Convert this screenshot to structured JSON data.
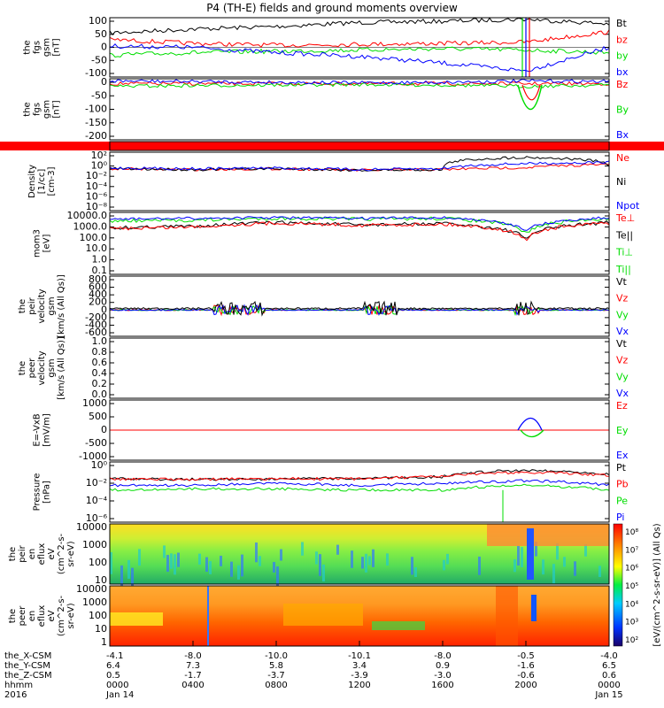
{
  "title": "P4 (TH-E) fields and ground moments overview",
  "colors": {
    "black": "#000000",
    "red": "#ff0000",
    "green": "#00dd00",
    "blue": "#0000ff",
    "flag": "#ff0000"
  },
  "panels": [
    {
      "id": "fgs",
      "ylabel": [
        "the",
        "fgs",
        "gsm",
        "[nT]"
      ],
      "yticks": [
        "100",
        "50",
        "0",
        "-50",
        "-100"
      ],
      "legend": [
        {
          "label": "Bt",
          "color": "black"
        },
        {
          "label": "bz",
          "color": "red"
        },
        {
          "label": "by",
          "color": "green"
        },
        {
          "label": "bx",
          "color": "blue"
        }
      ]
    },
    {
      "id": "fgs_hires",
      "ylabel": [
        "the",
        "fgs",
        "gsm",
        "[nT]"
      ],
      "yticks": [
        "0",
        "-50",
        "-100",
        "-150",
        "-200"
      ],
      "legend": [
        {
          "label": "Bz",
          "color": "red"
        },
        {
          "label": "By",
          "color": "green"
        },
        {
          "label": "Bx",
          "color": "blue"
        }
      ]
    },
    {
      "id": "flag",
      "ylabel": [],
      "yticks": [],
      "legend": []
    },
    {
      "id": "density",
      "ylabel": [
        "Density",
        "[1/cc]",
        "[cm-3]"
      ],
      "yticks": [
        "10²",
        "10⁰",
        "10⁻²",
        "10⁻⁴",
        "10⁻⁶",
        "10⁻⁸"
      ],
      "legend": [
        {
          "label": "Ne",
          "color": "red"
        },
        {
          "label": "Ni",
          "color": "black"
        },
        {
          "label": "Npot",
          "color": "blue"
        }
      ]
    },
    {
      "id": "temperature",
      "ylabel": [
        "mom3",
        "[eV]"
      ],
      "yticks": [
        "10000.0",
        "1000.0",
        "100.0",
        "10.0",
        "1.0",
        "0.1"
      ],
      "legend": [
        {
          "label": "Te⊥",
          "color": "red"
        },
        {
          "label": "Te||",
          "color": "black"
        },
        {
          "label": "Ti⊥",
          "color": "green"
        },
        {
          "label": "Ti||",
          "color": "green"
        }
      ]
    },
    {
      "id": "peir_velocity",
      "ylabel": [
        "the",
        "peir",
        "velocity",
        "gsm",
        "[km/s (All Qs)]"
      ],
      "yticks": [
        "800",
        "600",
        "400",
        "200",
        "0",
        "-200",
        "-400",
        "-600"
      ],
      "legend": [
        {
          "label": "Vt",
          "color": "black"
        },
        {
          "label": "Vz",
          "color": "red"
        },
        {
          "label": "Vy",
          "color": "green"
        },
        {
          "label": "Vx",
          "color": "blue"
        }
      ]
    },
    {
      "id": "peer_velocity",
      "ylabel": [
        "the",
        "peer",
        "velocity",
        "gsm",
        "[km/s (All Qs)]"
      ],
      "yticks": [
        "1.0",
        "0.8",
        "0.6",
        "0.4",
        "0.2",
        "0.0"
      ],
      "legend": [
        {
          "label": "Vt",
          "color": "black"
        },
        {
          "label": "Vz",
          "color": "red"
        },
        {
          "label": "Vy",
          "color": "green"
        },
        {
          "label": "Vx",
          "color": "blue"
        }
      ]
    },
    {
      "id": "efield",
      "ylabel": [
        "E=-VxB",
        "[mV/m]"
      ],
      "yticks": [
        "1000",
        "500",
        "0",
        "-500",
        "-1000"
      ],
      "legend": [
        {
          "label": "Ez",
          "color": "red"
        },
        {
          "label": "Ey",
          "color": "green"
        },
        {
          "label": "Ex",
          "color": "blue"
        }
      ]
    },
    {
      "id": "pressure",
      "ylabel": [
        "Pressure",
        "[nPa]"
      ],
      "yticks": [
        "10⁰",
        "10⁻²",
        "10⁻⁴",
        "10⁻⁶"
      ],
      "legend": [
        {
          "label": "Pt",
          "color": "black"
        },
        {
          "label": "Pb",
          "color": "red"
        },
        {
          "label": "Pe",
          "color": "green"
        },
        {
          "label": "Pi",
          "color": "blue"
        }
      ]
    },
    {
      "id": "peir_eflux",
      "ylabel": [
        "the",
        "peir",
        "en",
        "eflux",
        "eV",
        "(cm^2-s-",
        "sr-eV)"
      ],
      "yticks": [
        "10000",
        "1000",
        "100",
        "10"
      ],
      "legend": []
    },
    {
      "id": "peer_eflux",
      "ylabel": [
        "the",
        "peer",
        "en",
        "eflux",
        "eV",
        "(cm^2-s-",
        "sr-eV)"
      ],
      "yticks": [
        "10000",
        "1000",
        "100",
        "10",
        "1"
      ],
      "legend": []
    }
  ],
  "colorbar": {
    "ticks": [
      "10⁸",
      "10⁷",
      "10⁶",
      "10⁵",
      "10⁴",
      "10³",
      "10²"
    ],
    "label": "[eV/(cm^2-s-sr-eV)] (All Qs)"
  },
  "xaxis": {
    "row_labels": [
      "the_X-CSM",
      "the_Y-CSM",
      "the_Z-CSM",
      "hhmm",
      "2016"
    ],
    "columns": [
      [
        "-4.1",
        "6.4",
        "0.5",
        "0000",
        "Jan 14"
      ],
      [
        "-8.0",
        "7.3",
        "-1.7",
        "0400",
        ""
      ],
      [
        "-10.0",
        "5.8",
        "-3.7",
        "0800",
        ""
      ],
      [
        "-10.1",
        "3.4",
        "-3.9",
        "1200",
        ""
      ],
      [
        "-8.0",
        "0.9",
        "-3.0",
        "1600",
        ""
      ],
      [
        "-0.5",
        "-1.6",
        "-0.6",
        "2000",
        ""
      ],
      [
        "-4.0",
        "6.5",
        "0.6",
        "0000",
        "Jan 15"
      ]
    ]
  },
  "chart_data": {
    "type": "line",
    "title": "P4 (TH-E) fields and ground moments overview",
    "x_unit": "hhmm",
    "x": [
      "0000",
      "0400",
      "0800",
      "1200",
      "1600",
      "2000",
      "0000"
    ],
    "series": [
      {
        "name": "Bt",
        "panel": "fgs",
        "color": "black",
        "y": [
          55,
          70,
          80,
          95,
          100,
          108,
          90
        ]
      },
      {
        "name": "bz",
        "panel": "fgs",
        "color": "red",
        "y": [
          30,
          15,
          8,
          12,
          15,
          20,
          60
        ]
      },
      {
        "name": "by",
        "panel": "fgs",
        "color": "green",
        "y": [
          -30,
          -20,
          -15,
          -10,
          -5,
          -10,
          -20
        ]
      },
      {
        "name": "bx",
        "panel": "fgs",
        "color": "blue",
        "y": [
          5,
          0,
          -20,
          -35,
          -60,
          -90,
          0
        ]
      },
      {
        "name": "Ne",
        "panel": "density",
        "color": "red",
        "y": [
          0.3,
          0.2,
          0.3,
          0.15,
          0.2,
          0.5,
          2
        ]
      },
      {
        "name": "Ni",
        "panel": "density",
        "color": "black",
        "y": [
          0.3,
          0.2,
          0.3,
          0.15,
          0.2,
          50,
          1
        ]
      },
      {
        "name": "Te||",
        "panel": "temperature",
        "color": "black",
        "y": [
          800,
          1200,
          2500,
          1500,
          2000,
          50,
          2500
        ]
      },
      {
        "name": "Ti||",
        "panel": "temperature",
        "color": "green",
        "y": [
          3500,
          4000,
          6000,
          5000,
          6000,
          200,
          6000
        ]
      },
      {
        "name": "Pt",
        "panel": "pressure",
        "color": "black",
        "y": [
          0.1,
          0.08,
          0.1,
          0.1,
          0.2,
          2,
          0.5
        ]
      },
      {
        "name": "Pb",
        "panel": "pressure",
        "color": "red",
        "y": [
          0.1,
          0.08,
          0.1,
          0.1,
          0.2,
          1,
          0.3
        ]
      },
      {
        "name": "Pe",
        "panel": "pressure",
        "color": "green",
        "y": [
          0.002,
          0.003,
          0.003,
          0.002,
          0.002,
          0.01,
          0.002
        ]
      },
      {
        "name": "Pi",
        "panel": "pressure",
        "color": "blue",
        "y": [
          0.01,
          0.01,
          0.02,
          0.01,
          0.02,
          0.05,
          0.01
        ]
      }
    ]
  }
}
